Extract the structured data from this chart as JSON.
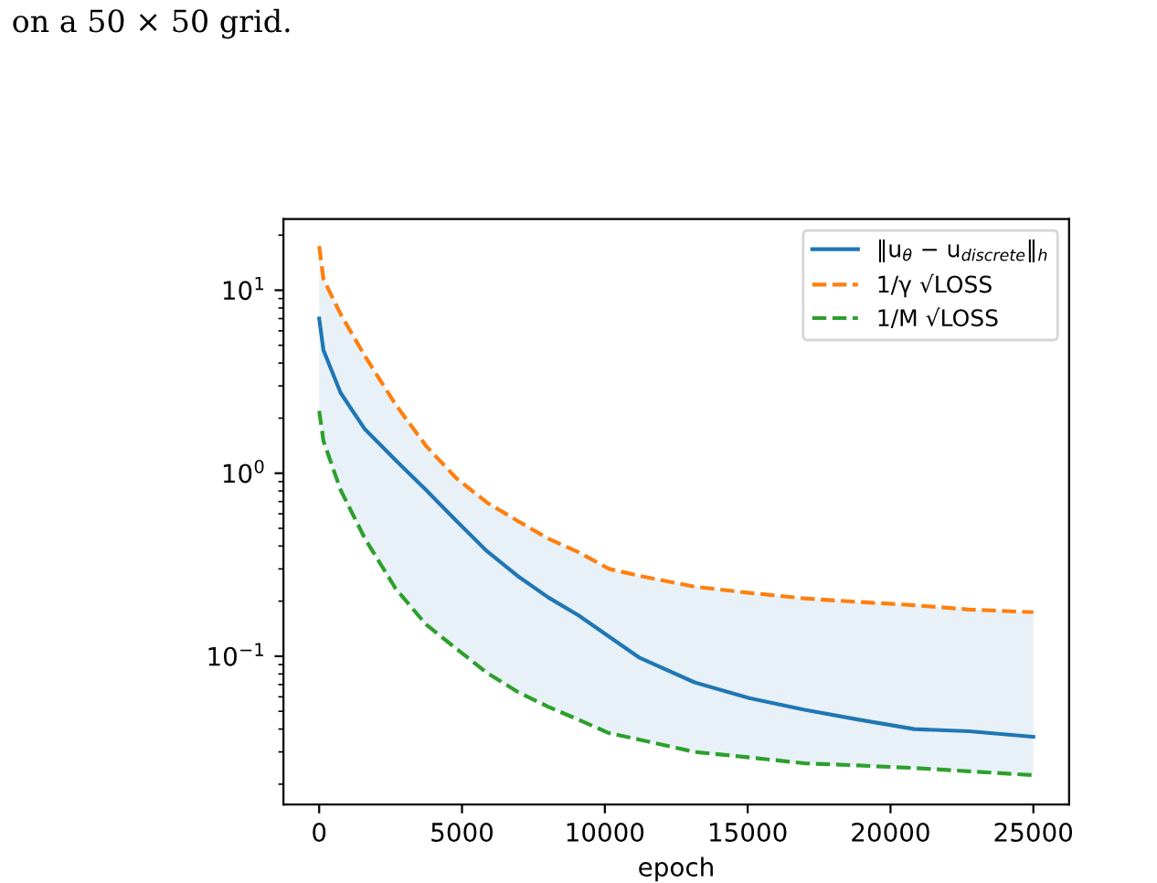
{
  "chart_data": {
    "type": "line",
    "xlabel": "epoch",
    "annotations": [
      "on a 50 × 50 grid."
    ],
    "x": [
      0,
      150,
      750,
      1600,
      2670,
      3740,
      4800,
      5880,
      6940,
      8010,
      9080,
      10150,
      11220,
      13140,
      15060,
      16990,
      18900,
      20830,
      22760,
      25000
    ],
    "series": [
      {
        "name": "‖u$_{θ}$ − u$_{discrete}$‖$_{h}$",
        "color": "#1f77b4",
        "line_style": "solid",
        "values": [
          7.0,
          4.7,
          2.75,
          1.74,
          1.18,
          0.81,
          0.55,
          0.374,
          0.275,
          0.21,
          0.167,
          0.128,
          0.098,
          0.072,
          0.059,
          0.051,
          0.045,
          0.04,
          0.0389,
          0.0363
        ],
        "upper": [
          17.4,
          11.5,
          7.4,
          4.37,
          2.38,
          1.41,
          0.94,
          0.69,
          0.55,
          0.44,
          0.37,
          0.3,
          0.275,
          0.24,
          0.222,
          0.207,
          0.198,
          0.19,
          0.18,
          0.174
        ],
        "lower": [
          2.19,
          1.5,
          0.81,
          0.44,
          0.235,
          0.149,
          0.11,
          0.081,
          0.064,
          0.053,
          0.045,
          0.038,
          0.035,
          0.03,
          0.028,
          0.026,
          0.0253,
          0.0245,
          0.0235,
          0.0224
        ]
      },
      {
        "name": "1/γ √LOSS",
        "color": "#ff7f0e",
        "line_style": "dashed",
        "values": [
          17.4,
          11.5,
          7.4,
          4.37,
          2.38,
          1.41,
          0.94,
          0.69,
          0.55,
          0.44,
          0.37,
          0.3,
          0.275,
          0.24,
          0.222,
          0.207,
          0.198,
          0.19,
          0.18,
          0.174
        ]
      },
      {
        "name": "1/M √LOSS",
        "color": "#2ca02c",
        "line_style": "dashed",
        "values": [
          2.19,
          1.5,
          0.81,
          0.44,
          0.235,
          0.149,
          0.11,
          0.081,
          0.064,
          0.053,
          0.045,
          0.038,
          0.035,
          0.03,
          0.028,
          0.026,
          0.0253,
          0.0245,
          0.0235,
          0.0224
        ]
      }
    ],
    "log": "y",
    "xlim": [
      -1250,
      26250
    ],
    "ylim": [
      0.0155,
      24.5
    ],
    "xticks": [
      0,
      5000,
      10000,
      15000,
      20000,
      25000
    ],
    "yticks": [
      {
        "value": 0.1,
        "label": "10$^{−1}$"
      },
      {
        "value": 1,
        "label": "10$^{0}$"
      },
      {
        "value": 10,
        "label": "10$^{1}$"
      }
    ],
    "grid": false,
    "legend": "top right"
  }
}
